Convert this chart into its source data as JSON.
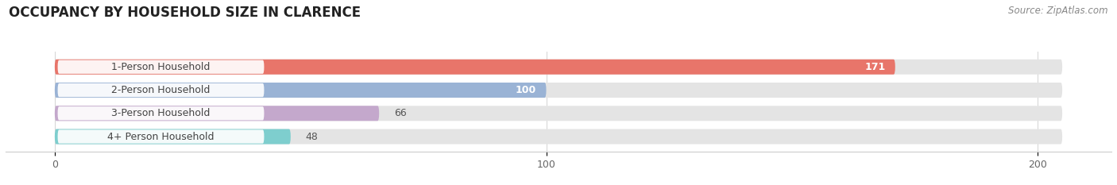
{
  "title": "OCCUPANCY BY HOUSEHOLD SIZE IN CLARENCE",
  "source": "Source: ZipAtlas.com",
  "categories": [
    "1-Person Household",
    "2-Person Household",
    "3-Person Household",
    "4+ Person Household"
  ],
  "values": [
    171,
    100,
    66,
    48
  ],
  "bar_colors": [
    "#e8756a",
    "#9ab3d5",
    "#c4a8cc",
    "#7ecece"
  ],
  "bar_bg_color": "#e4e4e4",
  "xlim": [
    -10,
    215
  ],
  "xticks": [
    0,
    100,
    200
  ],
  "figsize": [
    14.06,
    2.33
  ],
  "dpi": 100,
  "title_fontsize": 12,
  "label_fontsize": 9,
  "value_fontsize": 9,
  "source_fontsize": 8.5,
  "bar_height": 0.65,
  "bg_color": "#ffffff",
  "bar_bg_max": 205,
  "value_inside_threshold": 80
}
